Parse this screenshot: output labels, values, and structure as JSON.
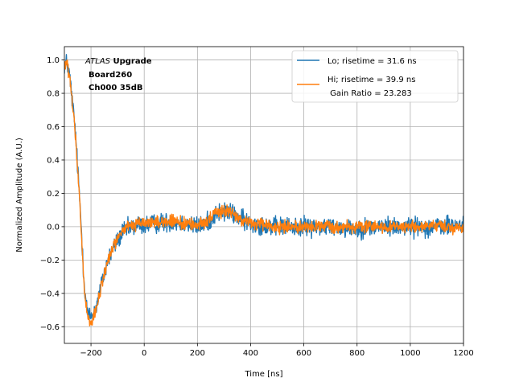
{
  "chart_data": {
    "type": "line",
    "title": "",
    "xlabel": "Time [ns]",
    "ylabel": "Normalized Amplitude (A.U.)",
    "xlim": [
      -300,
      1200
    ],
    "ylim": [
      -0.7,
      1.08
    ],
    "xticks": [
      -200,
      0,
      200,
      400,
      600,
      800,
      1000,
      1200
    ],
    "xtick_labels": [
      "−200",
      "0",
      "200",
      "400",
      "600",
      "800",
      "1000",
      "1200"
    ],
    "yticks": [
      -0.6,
      -0.4,
      -0.2,
      0.0,
      0.2,
      0.4,
      0.6,
      0.8,
      1.0
    ],
    "ytick_labels": [
      "−0.6",
      "−0.4",
      "−0.2",
      "0.0",
      "0.2",
      "0.4",
      "0.6",
      "0.8",
      "1.0"
    ],
    "grid": true,
    "legend_position": "top-right",
    "annotation": {
      "italic": "ATLAS",
      "bold_1": " Upgrade",
      "line_2": "Board260",
      "line_3": "Ch000 35dB"
    },
    "series": [
      {
        "name": "Lo; risetime = 31.6 ns",
        "color": "#1f77b4",
        "noise": 0.028,
        "x": [
          -300,
          -290,
          -280,
          -260,
          -240,
          -225,
          -215,
          -205,
          -195,
          -180,
          -160,
          -140,
          -120,
          -100,
          -80,
          -60,
          -40,
          -20,
          0,
          50,
          100,
          150,
          200,
          240,
          270,
          300,
          330,
          360,
          400,
          450,
          500,
          600,
          700,
          800,
          900,
          1000,
          1100,
          1200
        ],
        "y": [
          0.97,
          0.99,
          0.9,
          0.6,
          0.1,
          -0.35,
          -0.5,
          -0.54,
          -0.53,
          -0.48,
          -0.34,
          -0.22,
          -0.14,
          -0.08,
          -0.03,
          -0.01,
          0.0,
          0.01,
          0.01,
          0.02,
          0.03,
          0.02,
          0.0,
          0.03,
          0.08,
          0.09,
          0.08,
          0.05,
          0.02,
          0.01,
          0.0,
          0.0,
          0.0,
          -0.01,
          0.0,
          0.0,
          0.0,
          0.01
        ]
      },
      {
        "name": "Hi; risetime = 39.9 ns",
        "color": "#ff7f0e",
        "noise": 0.018,
        "x": [
          -300,
          -290,
          -280,
          -260,
          -240,
          -225,
          -215,
          -205,
          -195,
          -180,
          -160,
          -140,
          -120,
          -100,
          -80,
          -60,
          -40,
          -20,
          0,
          50,
          100,
          150,
          200,
          240,
          270,
          300,
          330,
          360,
          400,
          450,
          500,
          600,
          700,
          800,
          900,
          1000,
          1100,
          1200
        ],
        "y": [
          0.97,
          0.98,
          0.89,
          0.58,
          0.08,
          -0.38,
          -0.53,
          -0.58,
          -0.57,
          -0.5,
          -0.35,
          -0.22,
          -0.13,
          -0.07,
          -0.02,
          0.0,
          0.01,
          0.02,
          0.02,
          0.03,
          0.03,
          0.02,
          0.01,
          0.04,
          0.08,
          0.1,
          0.08,
          0.05,
          0.02,
          0.01,
          0.0,
          0.0,
          0.0,
          0.0,
          0.0,
          0.0,
          0.0,
          0.0
        ]
      }
    ],
    "legend_extra": " Gain Ratio = 23.283"
  }
}
